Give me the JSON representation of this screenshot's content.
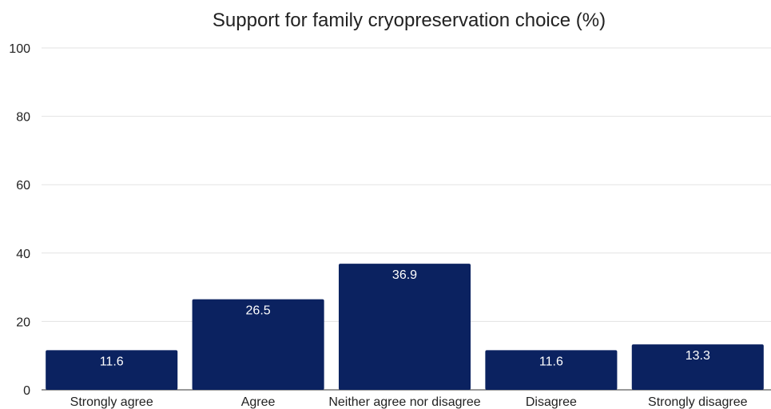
{
  "colors": {
    "bar": "#0b2260",
    "grid": "#e3e3e3",
    "label": "#ffffff",
    "text": "#222222"
  },
  "chart_data": {
    "type": "bar",
    "title": "Support for family cryopreservation choice (%)",
    "xlabel": "",
    "ylabel": "",
    "categories": [
      "Strongly agree",
      "Agree",
      "Neither agree nor disagree",
      "Disagree",
      "Strongly disagree"
    ],
    "values": [
      11.6,
      26.5,
      36.9,
      11.6,
      13.3
    ],
    "ylim": [
      0,
      100
    ],
    "yticks": [
      0,
      20,
      40,
      60,
      80,
      100
    ],
    "grid": true,
    "legend": "none",
    "data_labels": true
  }
}
